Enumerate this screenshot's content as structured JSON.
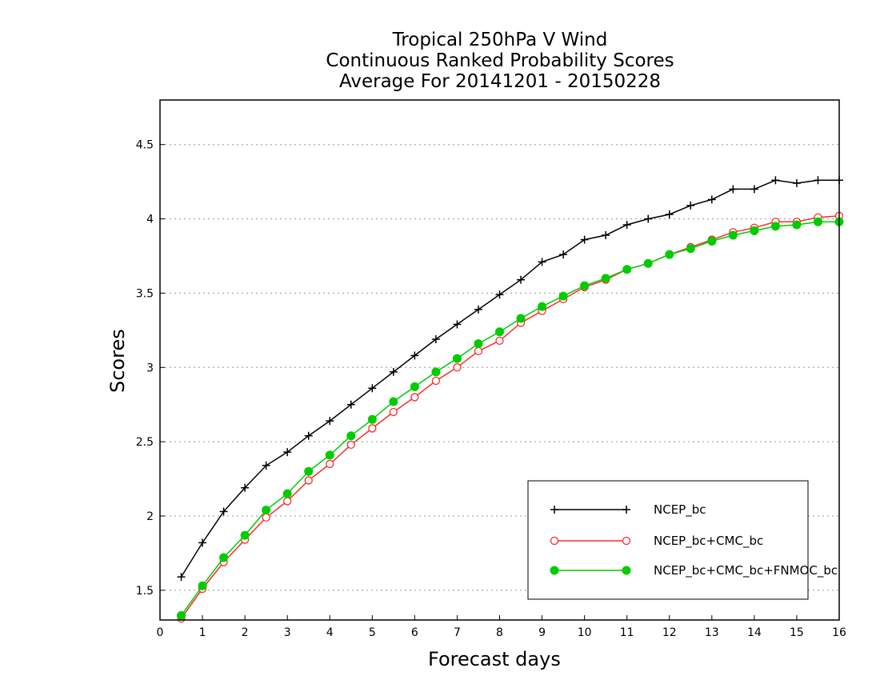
{
  "chart_data": {
    "type": "line",
    "title": [
      "Tropical 250hPa V Wind",
      "Continuous Ranked Probability Scores",
      "Average For 20141201 - 20150228"
    ],
    "xlabel": "Forecast days",
    "ylabel": "Scores",
    "xlim": [
      0,
      16
    ],
    "ylim": [
      1.3,
      4.8
    ],
    "xticks": [
      "0",
      "1",
      "2",
      "3",
      "4",
      "5",
      "6",
      "7",
      "8",
      "9",
      "10",
      "11",
      "12",
      "13",
      "14",
      "15",
      "16"
    ],
    "yticks": [
      "1.5",
      "2",
      "2.5",
      "3",
      "3.5",
      "4",
      "4.5"
    ],
    "ytick_values": [
      1.5,
      2,
      2.5,
      3,
      3.5,
      4,
      4.5
    ],
    "grid": "horizontal dotted",
    "legend_position": "bottom-right",
    "x": [
      0.5,
      1,
      1.5,
      2,
      2.5,
      3,
      3.5,
      4,
      4.5,
      5,
      5.5,
      6,
      6.5,
      7,
      7.5,
      8,
      8.5,
      9,
      9.5,
      10,
      10.5,
      11,
      11.5,
      12,
      12.5,
      13,
      13.5,
      14,
      14.5,
      15,
      15.5,
      16
    ],
    "series": [
      {
        "name": "NCEP_bc",
        "color": "#000000",
        "marker": "plus",
        "values": [
          1.59,
          1.82,
          2.03,
          2.19,
          2.34,
          2.43,
          2.54,
          2.64,
          2.75,
          2.86,
          2.97,
          3.08,
          3.19,
          3.29,
          3.39,
          3.49,
          3.59,
          3.71,
          3.76,
          3.86,
          3.89,
          3.96,
          4.0,
          4.03,
          4.09,
          4.13,
          4.2,
          4.2,
          4.26,
          4.24,
          4.26,
          4.26
        ]
      },
      {
        "name": "NCEP_bc+CMC_bc",
        "color": "#ff2a2a",
        "marker": "circle-open",
        "values": [
          1.31,
          1.51,
          1.69,
          1.84,
          1.99,
          2.1,
          2.24,
          2.35,
          2.48,
          2.59,
          2.7,
          2.8,
          2.91,
          3.0,
          3.11,
          3.18,
          3.3,
          3.38,
          3.46,
          3.54,
          3.59,
          3.66,
          3.7,
          3.76,
          3.81,
          3.86,
          3.91,
          3.94,
          3.98,
          3.98,
          4.01,
          4.02
        ]
      },
      {
        "name": "NCEP_bc+CMC_bc+FNMOC_bc",
        "color": "#00cc00",
        "marker": "circle-filled",
        "values": [
          1.33,
          1.53,
          1.72,
          1.87,
          2.04,
          2.15,
          2.3,
          2.41,
          2.54,
          2.65,
          2.77,
          2.87,
          2.97,
          3.06,
          3.16,
          3.24,
          3.33,
          3.41,
          3.48,
          3.55,
          3.6,
          3.66,
          3.7,
          3.76,
          3.8,
          3.85,
          3.89,
          3.92,
          3.95,
          3.96,
          3.98,
          3.98
        ]
      }
    ]
  }
}
